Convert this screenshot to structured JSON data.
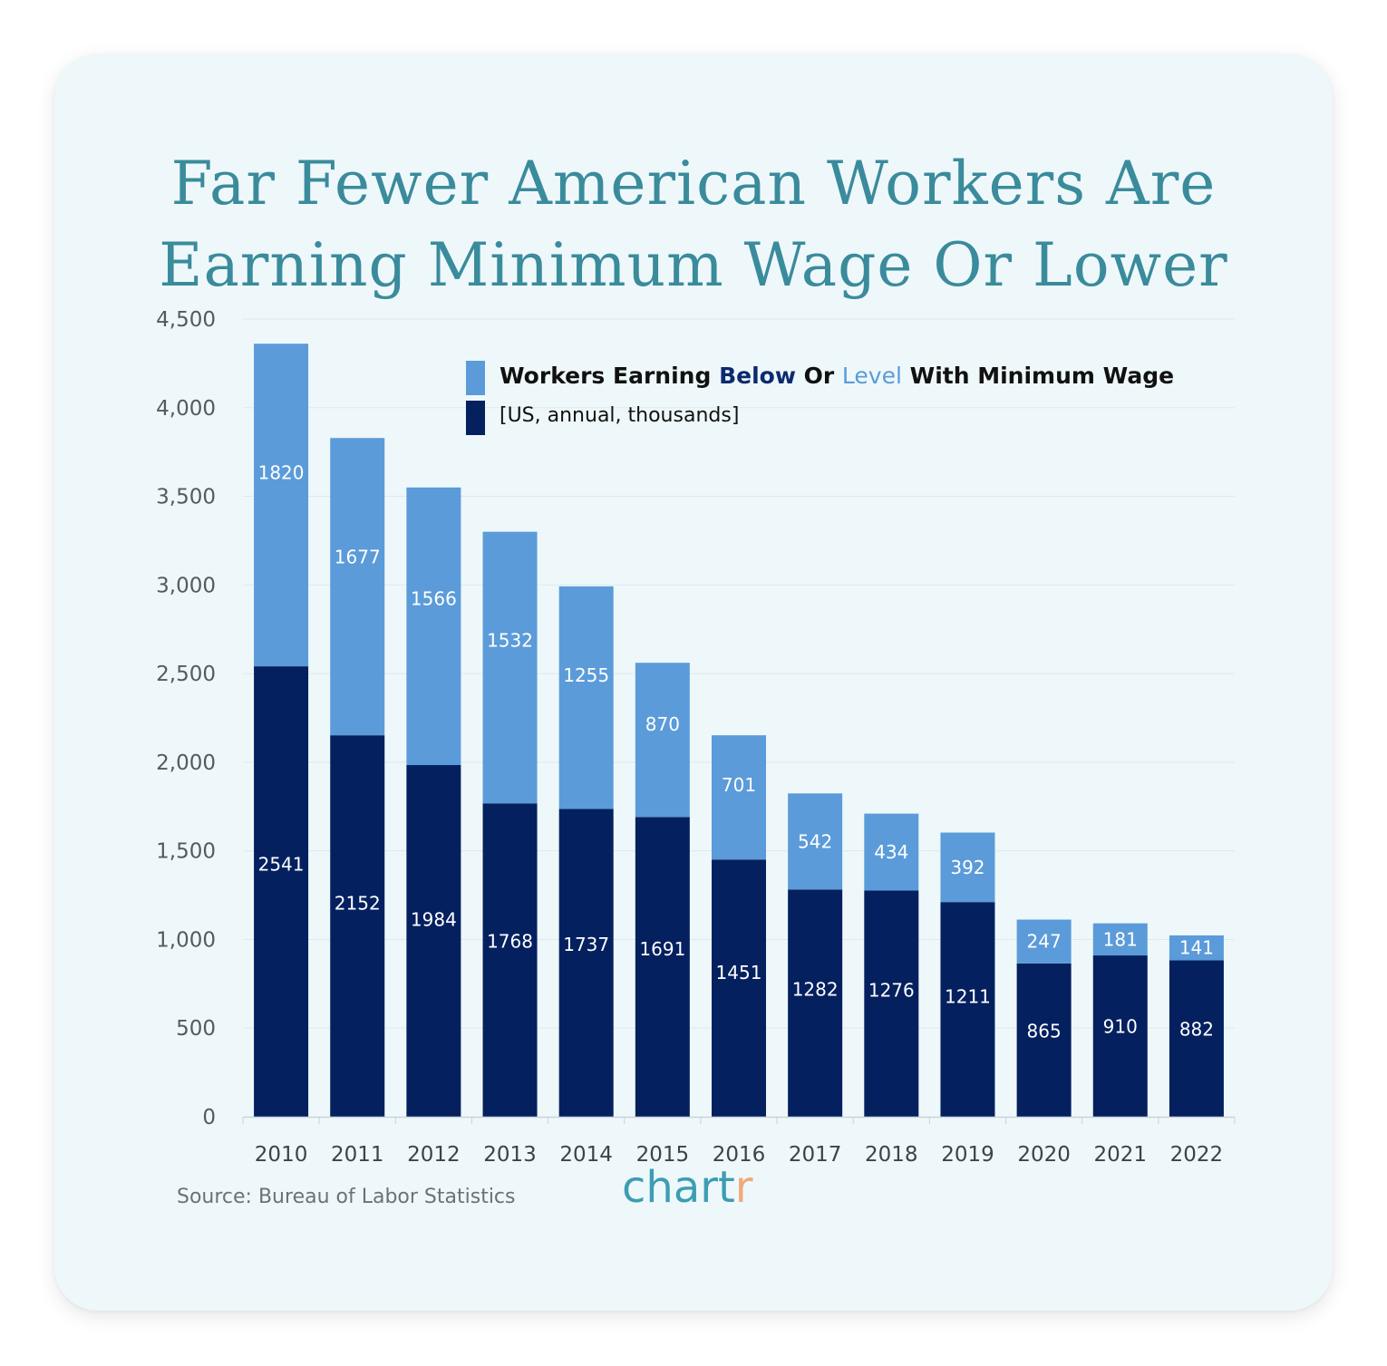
{
  "title": {
    "line1": "Far Fewer American Workers Are",
    "line2": "Earning Minimum Wage Or Lower"
  },
  "legend": {
    "line1_prefix": "Workers Earning ",
    "below_word": "Below",
    "or_word": " Or ",
    "level_word": "Level",
    "line1_suffix": " With Minimum Wage",
    "line2": "[US, annual, thousands]"
  },
  "colors": {
    "below": "#04205f",
    "level": "#5b9bd9",
    "title": "#3a8b9c",
    "grid": "#dfe8ec"
  },
  "source": "Source: Bureau of Labor Statistics",
  "logo": {
    "main": "chart",
    "accent": "r"
  },
  "chart_data": {
    "type": "bar",
    "stacked": true,
    "title": "Far Fewer American Workers Are Earning Minimum Wage Or Lower",
    "xlabel": "",
    "ylabel": "",
    "ylim": [
      0,
      4500
    ],
    "yticks": [
      0,
      500,
      1000,
      1500,
      2000,
      2500,
      3000,
      3500,
      4000,
      4500
    ],
    "ytick_labels": [
      "0",
      "500",
      "1,000",
      "1,500",
      "2,000",
      "2,500",
      "3,000",
      "3,500",
      "4,000",
      "4,500"
    ],
    "categories": [
      "2010",
      "2011",
      "2012",
      "2013",
      "2014",
      "2015",
      "2016",
      "2017",
      "2018",
      "2019",
      "2020",
      "2021",
      "2022"
    ],
    "series": [
      {
        "name": "Below",
        "color": "#04205f",
        "values": [
          2541,
          2152,
          1984,
          1768,
          1737,
          1691,
          1451,
          1282,
          1276,
          1211,
          865,
          910,
          882
        ]
      },
      {
        "name": "Level",
        "color": "#5b9bd9",
        "values": [
          1820,
          1677,
          1566,
          1532,
          1255,
          870,
          701,
          542,
          434,
          392,
          247,
          181,
          141
        ]
      }
    ],
    "grid": true,
    "legend_position": "top-right"
  }
}
